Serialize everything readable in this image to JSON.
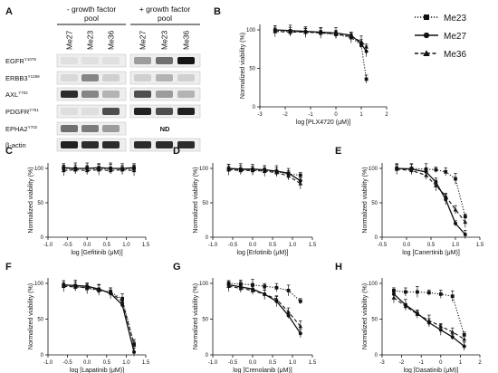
{
  "blot": {
    "letter": "A",
    "groups": [
      "- growth factor pool",
      "+ growth factor pool"
    ],
    "lanes": [
      "Me27",
      "Me23",
      "Me36",
      "Me27",
      "Me23",
      "Me36"
    ],
    "row_labels": [
      "EGFR",
      "ERBB3",
      "AXL",
      "PDGFR",
      "EPHA2",
      "β-actin"
    ],
    "row_superscripts": [
      "Y1078",
      "Y1289",
      "Y702",
      "Y751",
      "Y702",
      ""
    ],
    "nd_label": "ND",
    "band_intensity": [
      [
        0.05,
        0.05,
        0.05,
        0.35,
        0.55,
        0.95
      ],
      [
        0.08,
        0.45,
        0.12,
        0.12,
        0.25,
        0.12
      ],
      [
        0.85,
        0.45,
        0.25,
        0.7,
        0.35,
        0.25
      ],
      [
        0.06,
        0.06,
        0.7,
        0.9,
        0.7,
        0.9
      ],
      [
        0.55,
        0.5,
        0.35,
        null,
        null,
        null
      ],
      [
        0.9,
        0.85,
        0.85,
        0.85,
        0.85,
        0.85
      ]
    ]
  },
  "legend": {
    "entries": [
      "Me23",
      "Me27",
      "Me36"
    ]
  },
  "series_styles": [
    {
      "name": "Me23",
      "color": "#111111",
      "marker": "square",
      "line": "dotted"
    },
    {
      "name": "Me27",
      "color": "#111111",
      "marker": "circle",
      "line": "solid"
    },
    {
      "name": "Me36",
      "color": "#111111",
      "marker": "triangle",
      "line": "dashed"
    }
  ],
  "chart_data": [
    {
      "panel": "B",
      "type": "line",
      "xlabel": "log [PLX4720 (μM)]",
      "ylabel": "Normalized viability (%)",
      "xlim": [
        -3,
        2
      ],
      "ylim": [
        0,
        100
      ],
      "xticks": [
        -3,
        -2,
        -1,
        0,
        1,
        2
      ],
      "yticks": [
        0,
        50,
        100
      ],
      "x": [
        -2.4,
        -1.8,
        -1.2,
        -0.6,
        0,
        0.6,
        1.0,
        1.2
      ],
      "series": [
        {
          "marker": "square",
          "line": "dotted",
          "values": [
            99,
            98,
            97,
            96,
            94,
            90,
            80,
            36
          ]
        },
        {
          "marker": "circle",
          "line": "solid",
          "values": [
            100,
            99,
            98,
            97,
            96,
            93,
            82,
            72
          ]
        },
        {
          "marker": "triangle",
          "line": "dashed",
          "values": [
            98,
            97,
            97,
            96,
            95,
            91,
            85,
            78
          ]
        }
      ]
    },
    {
      "panel": "C",
      "type": "line",
      "xlabel": "log [Gefitinib (μM)]",
      "ylabel": "Normalized viability (%)",
      "xlim": [
        -1,
        1.5
      ],
      "ylim": [
        0,
        100
      ],
      "xticks": [
        -1.0,
        -0.5,
        0.0,
        0.5,
        1.0,
        1.5
      ],
      "yticks": [
        0,
        50,
        100
      ],
      "x": [
        -0.6,
        -0.3,
        0,
        0.3,
        0.6,
        0.9,
        1.2
      ],
      "series": [
        {
          "marker": "square",
          "line": "dotted",
          "values": [
            100,
            99,
            100,
            99,
            100,
            99,
            100
          ]
        },
        {
          "marker": "circle",
          "line": "solid",
          "values": [
            101,
            100,
            100,
            101,
            100,
            100,
            101
          ]
        },
        {
          "marker": "triangle",
          "line": "dashed",
          "values": [
            97,
            98,
            97,
            98,
            97,
            98,
            97
          ]
        }
      ]
    },
    {
      "panel": "D",
      "type": "line",
      "xlabel": "log [Erlotinib (μM)]",
      "ylabel": "Normalized viability (%)",
      "xlim": [
        -1,
        1.5
      ],
      "ylim": [
        0,
        100
      ],
      "xticks": [
        -1.0,
        -0.5,
        0.0,
        0.5,
        1.0,
        1.5
      ],
      "yticks": [
        0,
        50,
        100
      ],
      "x": [
        -0.6,
        -0.3,
        0,
        0.3,
        0.6,
        0.9,
        1.2
      ],
      "series": [
        {
          "marker": "square",
          "line": "dotted",
          "values": [
            99,
            98,
            98,
            97,
            95,
            92,
            90
          ]
        },
        {
          "marker": "circle",
          "line": "solid",
          "values": [
            100,
            99,
            99,
            98,
            96,
            93,
            82
          ]
        },
        {
          "marker": "triangle",
          "line": "dashed",
          "values": [
            98,
            97,
            97,
            96,
            94,
            89,
            78
          ]
        }
      ]
    },
    {
      "panel": "E",
      "type": "line",
      "xlabel": "log [Canertinib (μM)]",
      "ylabel": "Normalized viability (%)",
      "xlim": [
        -0.5,
        1.5
      ],
      "ylim": [
        0,
        100
      ],
      "xticks": [
        -0.5,
        0.0,
        0.5,
        1.0,
        1.5
      ],
      "yticks": [
        0,
        50,
        100
      ],
      "x": [
        -0.2,
        0.1,
        0.4,
        0.6,
        0.8,
        1.0,
        1.2
      ],
      "series": [
        {
          "marker": "square",
          "line": "dotted",
          "values": [
            100,
            100,
            99,
            98,
            95,
            85,
            30
          ]
        },
        {
          "marker": "circle",
          "line": "solid",
          "values": [
            100,
            99,
            95,
            80,
            55,
            20,
            4
          ]
        },
        {
          "marker": "triangle",
          "line": "dashed",
          "values": [
            99,
            97,
            90,
            75,
            60,
            40,
            22
          ]
        }
      ]
    },
    {
      "panel": "F",
      "type": "line",
      "xlabel": "log [Lapatinib (μM)]",
      "ylabel": "Normalized viability (%)",
      "xlim": [
        -1,
        1.5
      ],
      "ylim": [
        0,
        100
      ],
      "xticks": [
        -1.0,
        -0.5,
        0.0,
        0.5,
        1.0,
        1.5
      ],
      "yticks": [
        0,
        50,
        100
      ],
      "x": [
        -0.6,
        -0.3,
        0,
        0.3,
        0.6,
        0.9,
        1.2
      ],
      "series": [
        {
          "marker": "square",
          "line": "dotted",
          "values": [
            97,
            96,
            93,
            90,
            88,
            78,
            15
          ]
        },
        {
          "marker": "circle",
          "line": "solid",
          "values": [
            98,
            97,
            96,
            92,
            86,
            70,
            4
          ]
        },
        {
          "marker": "triangle",
          "line": "dashed",
          "values": [
            96,
            95,
            94,
            91,
            87,
            75,
            14
          ]
        }
      ]
    },
    {
      "panel": "G",
      "type": "line",
      "xlabel": "log [Crenolanib (μM)]",
      "ylabel": "Normalized viability (%)",
      "xlim": [
        -1,
        1.5
      ],
      "ylim": [
        0,
        100
      ],
      "xticks": [
        -1.0,
        -0.5,
        0.0,
        0.5,
        1.0,
        1.5
      ],
      "yticks": [
        0,
        50,
        100
      ],
      "x": [
        -0.6,
        -0.3,
        0,
        0.3,
        0.6,
        0.9,
        1.2
      ],
      "series": [
        {
          "marker": "square",
          "line": "dotted",
          "values": [
            100,
            99,
            98,
            96,
            94,
            90,
            75
          ]
        },
        {
          "marker": "circle",
          "line": "solid",
          "values": [
            98,
            95,
            92,
            85,
            75,
            55,
            30
          ]
        },
        {
          "marker": "triangle",
          "line": "dashed",
          "values": [
            96,
            93,
            90,
            85,
            78,
            60,
            40
          ]
        }
      ]
    },
    {
      "panel": "H",
      "type": "line",
      "xlabel": "log [Dasatinib (μM)]",
      "ylabel": "Normalized viability (%)",
      "xlim": [
        -3,
        2
      ],
      "ylim": [
        0,
        100
      ],
      "xticks": [
        -3,
        -2,
        -1,
        0,
        1,
        2
      ],
      "yticks": [
        0,
        50,
        100
      ],
      "x": [
        -2.4,
        -1.8,
        -1.2,
        -0.6,
        0,
        0.6,
        1.2
      ],
      "series": [
        {
          "marker": "square",
          "line": "dotted",
          "values": [
            90,
            88,
            88,
            87,
            85,
            82,
            28
          ]
        },
        {
          "marker": "circle",
          "line": "solid",
          "values": [
            85,
            70,
            58,
            45,
            35,
            25,
            12
          ]
        },
        {
          "marker": "triangle",
          "line": "dashed",
          "values": [
            80,
            68,
            57,
            48,
            40,
            32,
            22
          ]
        }
      ]
    }
  ]
}
